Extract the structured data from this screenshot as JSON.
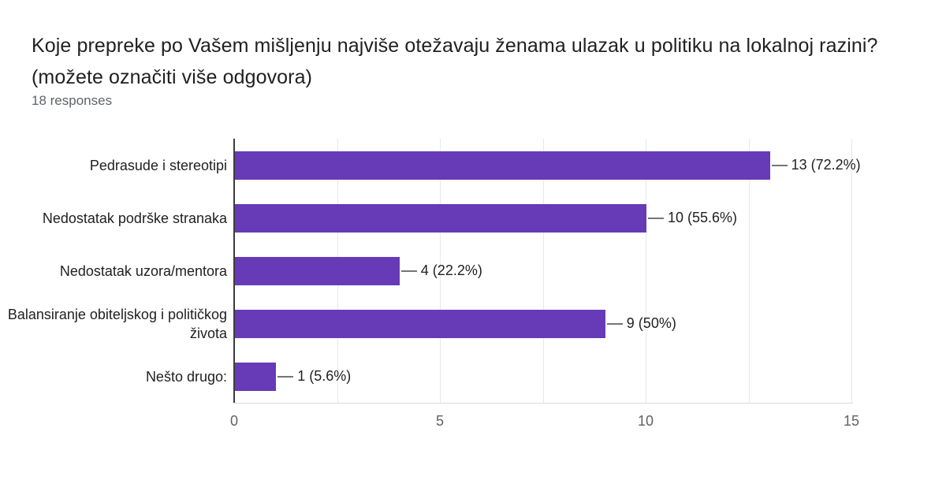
{
  "header": {
    "title_line1": "Koje prepreke po Vašem mišljenju najviše otežavaju ženama ulazak u politiku na lokalnoj razini?",
    "title_line2": "(možete označiti više odgovora)",
    "responses": "18 responses"
  },
  "chart_data": {
    "type": "bar",
    "orientation": "horizontal",
    "title": "Koje prepreke po Vašem mišljenju najviše otežavaju ženama ulazak u politiku na lokalnoj razini? (možete označiti više odgovora)",
    "subtitle": "18 responses",
    "total_responses": 18,
    "categories": [
      "Pedrasude i stereotipi",
      "Nedostatak podrške stranaka",
      "Nedostatak uzora/mentora",
      "Balansiranje obiteljskog i političkog života",
      "Nešto drugo:"
    ],
    "values": [
      13,
      10,
      4,
      9,
      1
    ],
    "value_labels": [
      "13 (72.2%)",
      "10 (55.6%)",
      "4 (22.2%)",
      "9 (50%)",
      "1 (5.6%)"
    ],
    "percentages": [
      72.2,
      55.6,
      22.2,
      50,
      5.6
    ],
    "xlim": [
      0,
      15
    ],
    "xticks": [
      0,
      5,
      10,
      15
    ],
    "gridline_step": 2.5,
    "grid_on": true,
    "legend": "none"
  },
  "colors": {
    "bar": "#673ab7",
    "title_text": "#212121",
    "subtitle_text": "#5f6368",
    "label_text": "#212121",
    "tick_text": "#616161",
    "gridline": "#e8e8e8",
    "axis_line": "#3c3c3c",
    "baseline": "#dcdcdc",
    "leader_line": "#757575",
    "background": "#ffffff"
  }
}
